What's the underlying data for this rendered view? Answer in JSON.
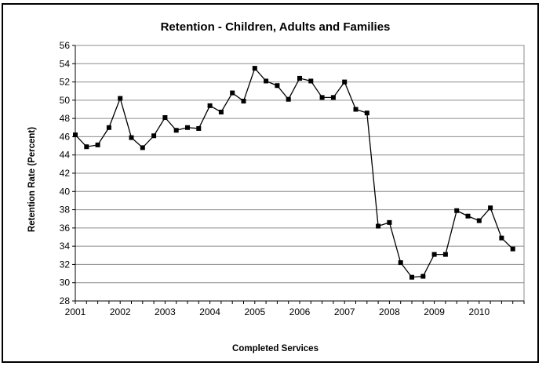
{
  "chart_data": {
    "type": "line",
    "title": "Retention - Children, Adults and Families",
    "xlabel": "Completed Services",
    "ylabel": "Retention Rate (Percent)",
    "ylim": [
      28,
      56
    ],
    "yticks": [
      28,
      30,
      32,
      34,
      36,
      38,
      40,
      42,
      44,
      46,
      48,
      50,
      52,
      54,
      56
    ],
    "xticks": [
      "2001",
      "2002",
      "2003",
      "2004",
      "2005",
      "2006",
      "2007",
      "2008",
      "2009",
      "2010"
    ],
    "grid": true,
    "legend": "none",
    "line_color": "#000000",
    "series": [
      {
        "values": [
          46.2,
          44.9,
          45.1,
          47.0,
          50.2,
          45.9,
          44.8,
          46.1,
          48.1,
          46.7,
          47.0,
          46.9,
          49.4,
          48.7,
          50.8,
          49.9,
          53.5,
          52.1,
          51.6,
          50.1,
          52.4,
          52.1,
          50.3,
          50.3,
          52.0,
          49.0,
          48.6,
          36.2,
          36.6,
          32.2,
          30.6,
          30.7,
          33.1,
          33.1,
          37.9,
          37.3,
          36.8,
          38.2,
          34.9,
          33.7
        ]
      }
    ]
  }
}
